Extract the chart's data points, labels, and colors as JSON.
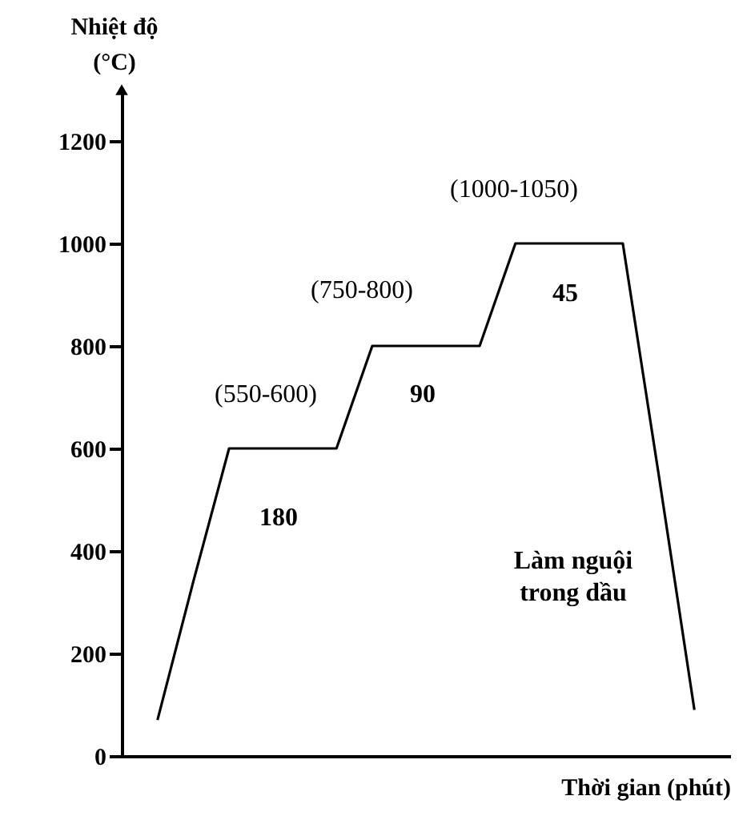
{
  "chart_data": {
    "type": "line",
    "ylabel": "Nhiệt độ (°C)",
    "xlabel": "Thời gian (phút)",
    "categories": [
      null,
      null,
      null,
      null,
      null,
      null,
      null,
      null,
      null,
      null,
      null,
      null,
      null,
      null,
      null,
      null
    ],
    "series": [
      {
        "color": "#000000",
        "values": [
          70,
          340,
          600,
          600,
          600,
          600,
          800,
          800,
          800,
          800,
          1000,
          1000,
          1000,
          1000,
          550,
          90
        ]
      }
    ],
    "ylim": [
      0,
      1300
    ],
    "yticks": [
      0,
      200,
      400,
      600,
      800,
      1000,
      1200
    ],
    "tick_labels": "y",
    "grid": false,
    "legend": false,
    "marker": "none",
    "line_style": "solid",
    "annotations": [
      "(550-600)",
      "(750-800)",
      "(1000-1050)",
      "180",
      "90",
      "45",
      "Làm nguội trong dầu"
    ]
  }
}
